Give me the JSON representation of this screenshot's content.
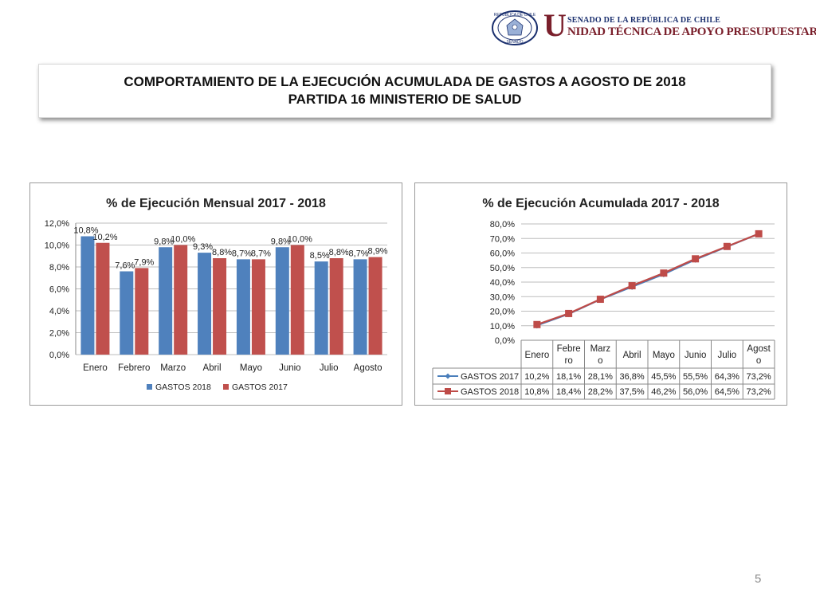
{
  "header": {
    "senate_line": "SENADO DE LA REPÚBLICA DE CHILE",
    "unit_initial": "U",
    "unit_name": "NIDAD TÉCNICA DE APOYO PRESUPUESTARIO",
    "seal_top": "REPÚBLICA DE CHILE",
    "seal_bottom": "SENADO"
  },
  "title": {
    "line1": "COMPORTAMIENTO DE LA EJECUCIÓN ACUMULADA DE GASTOS A AGOSTO DE 2018",
    "line2": "PARTIDA 16 MINISTERIO DE SALUD"
  },
  "colors": {
    "blue": "#4f81bd",
    "red": "#c0504d",
    "line_blue": "#4a7ebb",
    "line_red": "#be4b48"
  },
  "chart_data": [
    {
      "type": "bar",
      "title": "% de Ejecución Mensual 2017 - 2018",
      "categories": [
        "Enero",
        "Febrero",
        "Marzo",
        "Abril",
        "Mayo",
        "Junio",
        "Julio",
        "Agosto"
      ],
      "series": [
        {
          "name": "GASTOS 2018",
          "values": [
            10.8,
            7.6,
            9.8,
            9.3,
            8.7,
            9.8,
            8.5,
            8.7
          ],
          "labels": [
            "10,8%",
            "7,6%",
            "9,8%",
            "9,3%",
            "8,7%",
            "9,8%",
            "8,5%",
            "8,7%"
          ]
        },
        {
          "name": "GASTOS 2017",
          "values": [
            10.2,
            7.9,
            10.0,
            8.8,
            8.7,
            10.0,
            8.8,
            8.9
          ],
          "labels": [
            "10,2%",
            "7,9%",
            "10,0%",
            "8,8%",
            "8,7%",
            "10,0%",
            "8,8%",
            "8,9%"
          ]
        }
      ],
      "ylim": [
        0,
        12
      ],
      "yticks": [
        0,
        2,
        4,
        6,
        8,
        10,
        12
      ],
      "ytick_labels": [
        "0,0%",
        "2,0%",
        "4,0%",
        "6,0%",
        "8,0%",
        "10,0%",
        "12,0%"
      ],
      "grid": true,
      "legend": "bottom"
    },
    {
      "type": "line",
      "title": "% de Ejecución Acumulada 2017 - 2018",
      "categories": [
        "Enero",
        "Febrero",
        "Marzo",
        "Abril",
        "Mayo",
        "Junio",
        "Julio",
        "Agosto"
      ],
      "category_labels": [
        [
          "Enero"
        ],
        [
          "Febre",
          "ro"
        ],
        [
          "Marz",
          "o"
        ],
        [
          "Abril"
        ],
        [
          "Mayo"
        ],
        [
          "Junio"
        ],
        [
          "Julio"
        ],
        [
          "Agost",
          "o"
        ]
      ],
      "series": [
        {
          "name": "GASTOS 2017",
          "values": [
            10.2,
            18.1,
            28.1,
            36.8,
            45.5,
            55.5,
            64.3,
            73.2
          ],
          "labels": [
            "10,2%",
            "18,1%",
            "28,1%",
            "36,8%",
            "45,5%",
            "55,5%",
            "64,3%",
            "73,2%"
          ]
        },
        {
          "name": "GASTOS 2018",
          "values": [
            10.8,
            18.4,
            28.2,
            37.5,
            46.2,
            56.0,
            64.5,
            73.2
          ],
          "labels": [
            "10,8%",
            "18,4%",
            "28,2%",
            "37,5%",
            "46,2%",
            "56,0%",
            "64,5%",
            "73,2%"
          ]
        }
      ],
      "ylim": [
        0,
        80
      ],
      "yticks": [
        0,
        10,
        20,
        30,
        40,
        50,
        60,
        70,
        80
      ],
      "ytick_labels": [
        "0,0%",
        "10,0%",
        "20,0%",
        "30,0%",
        "40,0%",
        "50,0%",
        "60,0%",
        "70,0%",
        "80,0%"
      ],
      "grid": true,
      "legend": "data-table"
    }
  ],
  "page_number": "5"
}
